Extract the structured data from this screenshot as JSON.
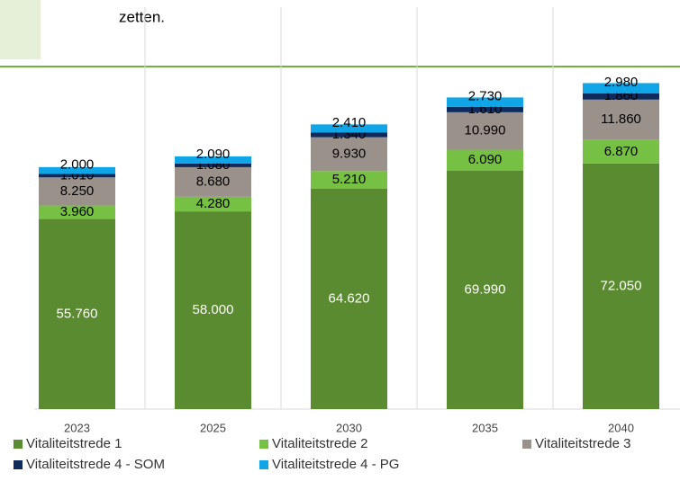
{
  "text": "zetten.",
  "chart_data": {
    "type": "stacked_bar",
    "categories": [
      "2023",
      "2025",
      "2030",
      "2035",
      "2040"
    ],
    "ylim": [
      0,
      120000
    ],
    "series": [
      {
        "name": "Vitaliteitstrede 1",
        "color": "#5b8b30",
        "values": [
          55760,
          58000,
          64620,
          69990,
          72050
        ],
        "value_labels": [
          "55.760",
          "58.000",
          "64.620",
          "69.990",
          "72.050"
        ]
      },
      {
        "name": "Vitaliteitstrede 2",
        "color": "#76c043",
        "values": [
          3960,
          4280,
          5210,
          6090,
          6870
        ],
        "value_labels": [
          "3.960",
          "4.280",
          "5.210",
          "6.090",
          "6.870"
        ]
      },
      {
        "name": "Vitaliteitstrede 3",
        "color": "#9b918b",
        "values": [
          8250,
          8680,
          9930,
          10990,
          11860
        ],
        "value_labels": [
          "8.250",
          "8.680",
          "9.930",
          "10.990",
          "11.860"
        ]
      },
      {
        "name": "Vitaliteitstrede 4 - SOM",
        "color": "#0f2a5c",
        "values": [
          1010,
          1080,
          1340,
          1610,
          1860
        ],
        "value_labels": [
          "1.010",
          "1.080",
          "1.340",
          "1.610",
          "1.860"
        ]
      },
      {
        "name": "Vitaliteitstrede 4 - PG",
        "color": "#10a5e6",
        "values": [
          2000,
          2090,
          2410,
          2730,
          2980
        ],
        "value_labels": [
          "2.000",
          "2.090",
          "2.410",
          "2.730",
          "2.980"
        ]
      }
    ]
  }
}
